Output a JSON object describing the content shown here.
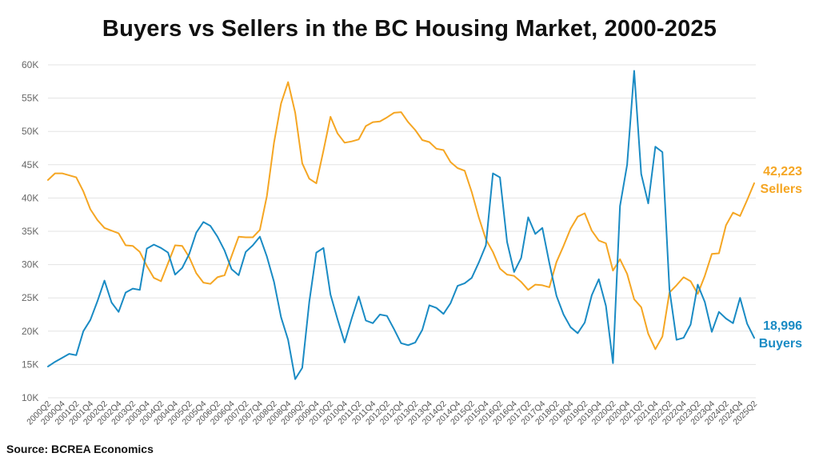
{
  "title": "Buyers vs Sellers in the BC Housing Market, 2000-2025",
  "source": "Source: BCREA Economics",
  "chart_data": {
    "type": "line",
    "ylim": [
      10000,
      60000
    ],
    "yticks": [
      10000,
      15000,
      20000,
      25000,
      30000,
      35000,
      40000,
      45000,
      50000,
      55000,
      60000
    ],
    "ytick_labels": [
      "10K",
      "15K",
      "20K",
      "25K",
      "30K",
      "35K",
      "40K",
      "45K",
      "50K",
      "55K",
      "60K"
    ],
    "grid": true,
    "x": [
      "2000Q2",
      "2000Q3",
      "2000Q4",
      "2001Q1",
      "2001Q2",
      "2001Q3",
      "2001Q4",
      "2002Q1",
      "2002Q2",
      "2002Q3",
      "2002Q4",
      "2003Q1",
      "2003Q2",
      "2003Q3",
      "2003Q4",
      "2004Q1",
      "2004Q2",
      "2004Q3",
      "2004Q4",
      "2005Q1",
      "2005Q2",
      "2005Q3",
      "2005Q4",
      "2006Q1",
      "2006Q2",
      "2006Q3",
      "2006Q4",
      "2007Q1",
      "2007Q2",
      "2007Q3",
      "2007Q4",
      "2008Q1",
      "2008Q2",
      "2008Q3",
      "2008Q4",
      "2009Q1",
      "2009Q2",
      "2009Q3",
      "2009Q4",
      "2010Q1",
      "2010Q2",
      "2010Q3",
      "2010Q4",
      "2011Q1",
      "2011Q2",
      "2011Q3",
      "2011Q4",
      "2012Q1",
      "2012Q2",
      "2012Q3",
      "2012Q4",
      "2013Q1",
      "2013Q2",
      "2013Q3",
      "2013Q4",
      "2014Q1",
      "2014Q2",
      "2014Q3",
      "2014Q4",
      "2015Q1",
      "2015Q2",
      "2015Q3",
      "2015Q4",
      "2016Q1",
      "2016Q2",
      "2016Q3",
      "2016Q4",
      "2017Q1",
      "2017Q2",
      "2017Q3",
      "2017Q4",
      "2018Q1",
      "2018Q2",
      "2018Q3",
      "2018Q4",
      "2019Q1",
      "2019Q2",
      "2019Q3",
      "2019Q4",
      "2020Q1",
      "2020Q2",
      "2020Q3",
      "2020Q4",
      "2021Q1",
      "2021Q2",
      "2021Q3",
      "2021Q4",
      "2022Q1",
      "2022Q2",
      "2022Q3",
      "2022Q4",
      "2023Q1",
      "2023Q2",
      "2023Q3",
      "2023Q4",
      "2024Q1",
      "2024Q2",
      "2024Q3",
      "2024Q4",
      "2025Q1",
      "2025Q2"
    ],
    "xtick_labels": [
      "2000Q2",
      "2000Q4",
      "2001Q2",
      "2001Q4",
      "2002Q2",
      "2002Q4",
      "2003Q2",
      "2003Q4",
      "2004Q2",
      "2004Q4",
      "2005Q2",
      "2005Q4",
      "2006Q2",
      "2006Q4",
      "2007Q2",
      "2007Q4",
      "2008Q2",
      "2008Q4",
      "2009Q2",
      "2009Q4",
      "2010Q2",
      "2010Q4",
      "2011Q2",
      "2011Q4",
      "2012Q2",
      "2012Q4",
      "2013Q2",
      "2013Q4",
      "2014Q2",
      "2014Q4",
      "2015Q2",
      "2015Q4",
      "2016Q2",
      "2016Q4",
      "2017Q2",
      "2017Q4",
      "2018Q2",
      "2018Q4",
      "2019Q2",
      "2019Q4",
      "2020Q2",
      "2020Q4",
      "2021Q2",
      "2021Q4",
      "2022Q2",
      "2022Q4",
      "2023Q2",
      "2023Q4",
      "2024Q2",
      "2024Q4",
      "2025Q2"
    ],
    "series": [
      {
        "name": "Sellers",
        "color": "#F5A623",
        "end_label": "42,223",
        "values": [
          42700,
          43700,
          43700,
          43400,
          43100,
          41000,
          38300,
          36700,
          35500,
          35100,
          34700,
          32900,
          32800,
          31900,
          29800,
          28000,
          27500,
          30200,
          32900,
          32800,
          31100,
          28700,
          27300,
          27100,
          28100,
          28400,
          31300,
          34200,
          34100,
          34100,
          35200,
          40300,
          48300,
          54200,
          57400,
          52800,
          45200,
          42900,
          42200,
          47100,
          52200,
          49700,
          48300,
          48500,
          48800,
          50800,
          51400,
          51500,
          52100,
          52800,
          52900,
          51400,
          50200,
          48700,
          48400,
          47400,
          47200,
          45400,
          44500,
          44100,
          40900,
          37100,
          33800,
          31900,
          29400,
          28500,
          28300,
          27400,
          26200,
          27000,
          26900,
          26600,
          30400,
          32800,
          35400,
          37200,
          37700,
          35100,
          33600,
          33200,
          29100,
          30800,
          28600,
          24800,
          23600,
          19600,
          17300,
          19200,
          25800,
          26900,
          28100,
          27500,
          25600,
          28300,
          31600,
          31700,
          35900,
          37800,
          37300,
          39700,
          42223
        ]
      },
      {
        "name": "Buyers",
        "color": "#1A8BC4",
        "end_label": "18,996",
        "values": [
          14700,
          15400,
          16000,
          16600,
          16400,
          20000,
          21700,
          24500,
          27600,
          24300,
          22900,
          25800,
          26400,
          26200,
          32400,
          33000,
          32500,
          31800,
          28500,
          29500,
          31600,
          34800,
          36400,
          35800,
          34200,
          32100,
          29300,
          28400,
          31900,
          32900,
          34200,
          31200,
          27400,
          22100,
          18700,
          12800,
          14500,
          24400,
          31800,
          32500,
          25500,
          21800,
          18300,
          21900,
          25200,
          21600,
          21200,
          22500,
          22300,
          20300,
          18200,
          17900,
          18300,
          20200,
          23900,
          23500,
          22600,
          24200,
          26800,
          27200,
          28000,
          30300,
          32900,
          43700,
          43100,
          33400,
          28900,
          31000,
          37100,
          34600,
          35500,
          30200,
          25300,
          22500,
          20600,
          19700,
          21300,
          25400,
          27800,
          23800,
          15200,
          38800,
          45000,
          59100,
          43600,
          39200,
          47700,
          46900,
          26300,
          18700,
          19000,
          21000,
          27000,
          24400,
          19900,
          22900,
          21900,
          21200,
          25000,
          21100,
          18996
        ]
      }
    ]
  }
}
